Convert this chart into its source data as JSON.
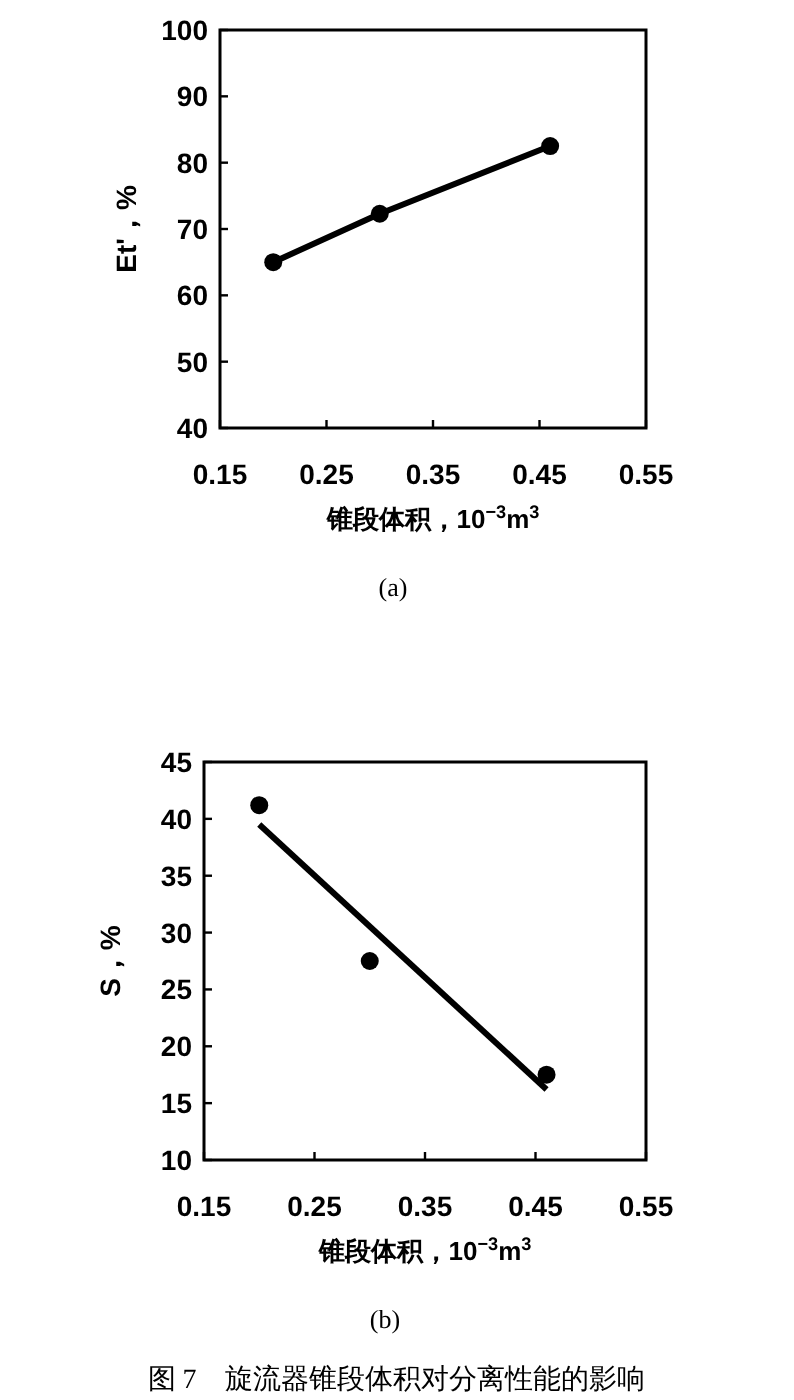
{
  "chart_data": [
    {
      "type": "line",
      "xlabel": "锥段体积，10$^{−3}$m$^{3}$",
      "ylabel": "Et'，%",
      "annotations": [
        "(a)"
      ],
      "xlim": [
        0.15,
        0.55
      ],
      "ylim": [
        40,
        100
      ],
      "xticks": [
        0.15,
        0.25,
        0.35,
        0.45,
        0.55
      ],
      "yticks": [
        40,
        50,
        60,
        70,
        80,
        90,
        100
      ],
      "marker": "circle",
      "line_style": "solid",
      "series": [
        {
          "color": "#000000",
          "x": [
            0.2,
            0.3,
            0.46
          ],
          "values": [
            65,
            72.3,
            82.5
          ]
        }
      ]
    },
    {
      "type": "scatter",
      "xlabel": "锥段体积，10$^{−3}$m$^{3}$",
      "ylabel": "S，%",
      "annotations": [
        "(b)",
        "图 7　旋流器锥段体积对分离性能的影响"
      ],
      "xlim": [
        0.15,
        0.55
      ],
      "ylim": [
        10,
        45
      ],
      "xticks": [
        0.15,
        0.25,
        0.35,
        0.45,
        0.55
      ],
      "yticks": [
        10,
        15,
        20,
        25,
        30,
        35,
        40,
        45
      ],
      "series": [
        {
          "marker": "circle",
          "color": "#000000",
          "x": [
            0.2,
            0.3,
            0.46
          ],
          "values": [
            41.2,
            27.5,
            17.5
          ]
        },
        {
          "type": "line",
          "marker": "none",
          "line_style": "solid",
          "color": "#000000",
          "x": [
            0.2,
            0.46
          ],
          "values": [
            39.5,
            16.2
          ]
        }
      ]
    }
  ]
}
